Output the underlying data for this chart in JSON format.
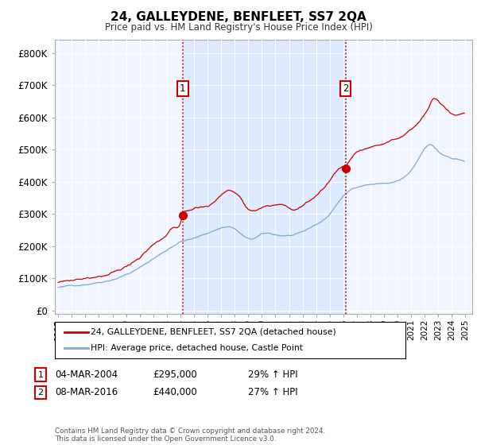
{
  "title": "24, GALLEYDENE, BENFLEET, SS7 2QA",
  "subtitle": "Price paid vs. HM Land Registry's House Price Index (HPI)",
  "ylabel_ticks": [
    "£0",
    "£100K",
    "£200K",
    "£300K",
    "£400K",
    "£500K",
    "£600K",
    "£700K",
    "£800K"
  ],
  "ytick_values": [
    0,
    100000,
    200000,
    300000,
    400000,
    500000,
    600000,
    700000,
    800000
  ],
  "ylim": [
    -10000,
    840000
  ],
  "xlim_start": 1994.75,
  "xlim_end": 2025.5,
  "sale1_x": 2004.17,
  "sale1_y": 295000,
  "sale1_label": "04-MAR-2004",
  "sale1_price": "£295,000",
  "sale1_hpi": "29% ↑ HPI",
  "sale2_x": 2016.17,
  "sale2_y": 440000,
  "sale2_label": "08-MAR-2016",
  "sale2_price": "£440,000",
  "sale2_hpi": "27% ↑ HPI",
  "red_line_color": "#cc0000",
  "blue_line_color": "#7aaad4",
  "shade_color": "#ddeeff",
  "bg_color": "#f5f8ff",
  "legend_line1": "24, GALLEYDENE, BENFLEET, SS7 2QA (detached house)",
  "legend_line2": "HPI: Average price, detached house, Castle Point",
  "footer": "Contains HM Land Registry data © Crown copyright and database right 2024.\nThis data is licensed under the Open Government Licence v3.0."
}
